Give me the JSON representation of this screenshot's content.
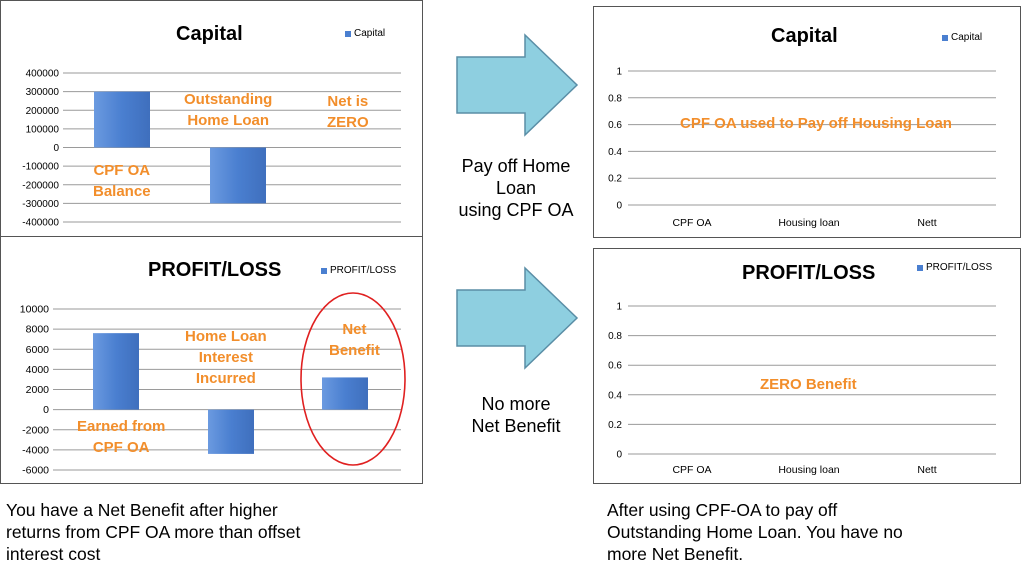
{
  "chart_data": [
    {
      "id": "capital_before",
      "type": "bar",
      "title": "Capital",
      "legend": "Capital",
      "legend_position": "top-right",
      "categories": [
        "CPF OA Balance",
        "Outstanding Home Loan",
        "Net is ZERO"
      ],
      "values": [
        300000,
        -300000,
        0
      ],
      "ylim": [
        -400000,
        400000
      ],
      "yticks": [
        "400000",
        "300000",
        "200000",
        "100000",
        "0",
        "-100000",
        "-200000",
        "-300000",
        "-400000"
      ],
      "grid": true,
      "annotations": [
        {
          "text": "Outstanding"
        },
        {
          "text": "Home Loan"
        },
        {
          "text": "Net is"
        },
        {
          "text": "ZERO"
        },
        {
          "text": "CPF OA"
        },
        {
          "text": "Balance"
        }
      ]
    },
    {
      "id": "profit_before",
      "type": "bar",
      "title": "PROFIT/LOSS",
      "legend": "PROFIT/LOSS",
      "legend_position": "top-right",
      "categories": [
        "Earned from CPF OA",
        "Home Loan Interest Incurred",
        "Net Benefit"
      ],
      "values": [
        7600,
        -4400,
        3200
      ],
      "ylim": [
        -6000,
        10000
      ],
      "yticks": [
        "10000",
        "8000",
        "6000",
        "4000",
        "2000",
        "0",
        "-2000",
        "-4000",
        "-6000"
      ],
      "grid": true,
      "annotations": [
        {
          "text": "Home Loan"
        },
        {
          "text": "Interest"
        },
        {
          "text": "Incurred"
        },
        {
          "text": "Net"
        },
        {
          "text": "Benefit"
        },
        {
          "text": "Earned from"
        },
        {
          "text": "CPF OA"
        }
      ]
    },
    {
      "id": "capital_after",
      "type": "bar",
      "title": "Capital",
      "legend": "Capital",
      "legend_position": "top-right",
      "categories": [
        "CPF OA",
        "Housing loan",
        "Nett"
      ],
      "values": [
        0,
        0,
        0
      ],
      "ylim": [
        0,
        1
      ],
      "yticks": [
        "1",
        "0.8",
        "0.6",
        "0.4",
        "0.2",
        "0"
      ],
      "grid": true,
      "annotations": [
        {
          "text": "CPF OA used to Pay off Housing Loan"
        }
      ]
    },
    {
      "id": "profit_after",
      "type": "bar",
      "title": "PROFIT/LOSS",
      "legend": "PROFIT/LOSS",
      "legend_position": "top-right",
      "categories": [
        "CPF OA",
        "Housing loan",
        "Nett"
      ],
      "values": [
        0,
        0,
        0
      ],
      "ylim": [
        0,
        1
      ],
      "yticks": [
        "1",
        "0.8",
        "0.6",
        "0.4",
        "0.2",
        "0"
      ],
      "grid": true,
      "annotations": [
        {
          "text": "ZERO Benefit"
        }
      ]
    }
  ],
  "arrows": {
    "top_label": [
      "Pay off Home",
      "Loan",
      "using CPF OA"
    ],
    "bottom_label": [
      "No more",
      "Net Benefit"
    ]
  },
  "captions": {
    "left": [
      "You have a Net Benefit after higher",
      "returns from CPF OA more than offset",
      "interest cost"
    ],
    "right": [
      "After using CPF-OA to pay off",
      "Outstanding Home Loan. You have no",
      "more Net Benefit."
    ]
  },
  "colors": {
    "bar": "#4a7fd0",
    "annotation": "#f28e2b",
    "arrow": "#8ecfe0",
    "highlight": "#e02020"
  }
}
